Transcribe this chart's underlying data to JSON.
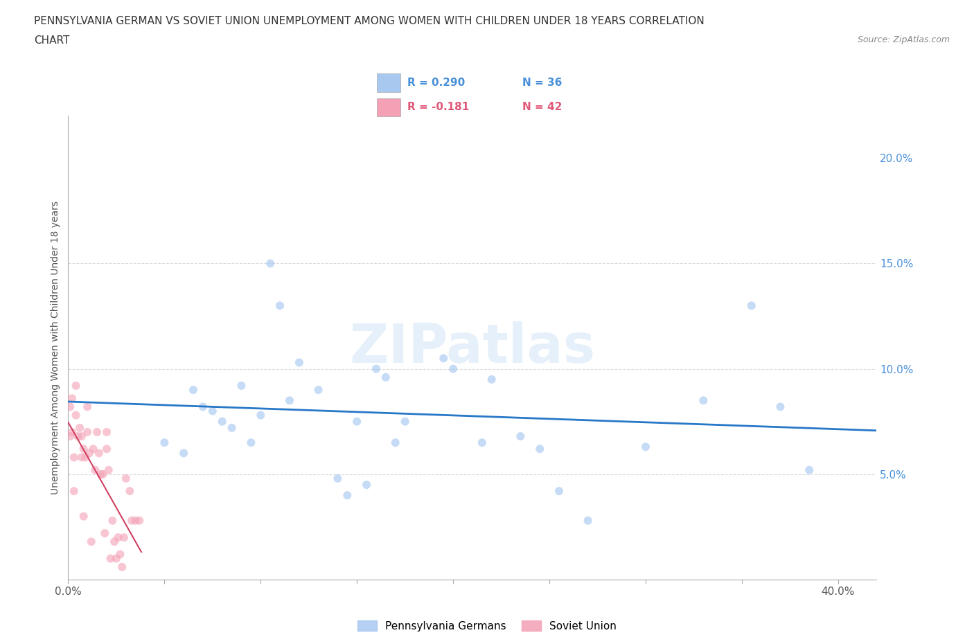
{
  "title_line1": "PENNSYLVANIA GERMAN VS SOVIET UNION UNEMPLOYMENT AMONG WOMEN WITH CHILDREN UNDER 18 YEARS CORRELATION",
  "title_line2": "CHART",
  "source": "Source: ZipAtlas.com",
  "ylabel": "Unemployment Among Women with Children Under 18 years",
  "watermark": "ZIPatlas",
  "legend_blue_r": "R = 0.290",
  "legend_blue_n": "N = 36",
  "legend_pink_r": "R = -0.181",
  "legend_pink_n": "N = 42",
  "blue_color": "#a8c8f0",
  "pink_color": "#f4a0b5",
  "blue_line_color": "#2878c8",
  "pink_line_color": "#d04060",
  "legend_blue_text_color": "#4a90d9",
  "legend_pink_text_color": "#e05878",
  "xlim": [
    0.0,
    0.42
  ],
  "ylim": [
    0.0,
    0.22
  ],
  "blue_x": [
    0.05,
    0.06,
    0.065,
    0.07,
    0.075,
    0.08,
    0.085,
    0.09,
    0.095,
    0.1,
    0.105,
    0.11,
    0.115,
    0.12,
    0.13,
    0.14,
    0.145,
    0.15,
    0.155,
    0.16,
    0.165,
    0.17,
    0.175,
    0.195,
    0.2,
    0.215,
    0.22,
    0.235,
    0.245,
    0.255,
    0.27,
    0.3,
    0.33,
    0.355,
    0.37,
    0.385
  ],
  "blue_y": [
    0.065,
    0.06,
    0.09,
    0.082,
    0.08,
    0.075,
    0.072,
    0.092,
    0.065,
    0.078,
    0.15,
    0.13,
    0.085,
    0.103,
    0.09,
    0.048,
    0.04,
    0.075,
    0.045,
    0.1,
    0.096,
    0.065,
    0.075,
    0.105,
    0.1,
    0.065,
    0.095,
    0.068,
    0.062,
    0.042,
    0.028,
    0.063,
    0.085,
    0.13,
    0.082,
    0.052
  ],
  "pink_x": [
    0.001,
    0.001,
    0.002,
    0.002,
    0.003,
    0.003,
    0.004,
    0.004,
    0.005,
    0.006,
    0.007,
    0.007,
    0.008,
    0.008,
    0.009,
    0.01,
    0.01,
    0.011,
    0.012,
    0.013,
    0.014,
    0.015,
    0.016,
    0.017,
    0.018,
    0.019,
    0.02,
    0.02,
    0.021,
    0.022,
    0.023,
    0.024,
    0.025,
    0.026,
    0.027,
    0.028,
    0.029,
    0.03,
    0.032,
    0.033,
    0.035,
    0.037
  ],
  "pink_y": [
    0.082,
    0.068,
    0.086,
    0.07,
    0.058,
    0.042,
    0.092,
    0.078,
    0.068,
    0.072,
    0.068,
    0.058,
    0.062,
    0.03,
    0.058,
    0.082,
    0.07,
    0.06,
    0.018,
    0.062,
    0.052,
    0.07,
    0.06,
    0.05,
    0.05,
    0.022,
    0.07,
    0.062,
    0.052,
    0.01,
    0.028,
    0.018,
    0.01,
    0.02,
    0.012,
    0.006,
    0.02,
    0.048,
    0.042,
    0.028,
    0.028,
    0.028
  ],
  "scatter_size": 75,
  "blue_scatter_alpha": 0.65,
  "pink_scatter_alpha": 0.6,
  "grid_color": "#cccccc",
  "grid_alpha": 0.7,
  "background_color": "#ffffff",
  "legend_label_blue": "Pennsylvania Germans",
  "legend_label_pink": "Soviet Union"
}
